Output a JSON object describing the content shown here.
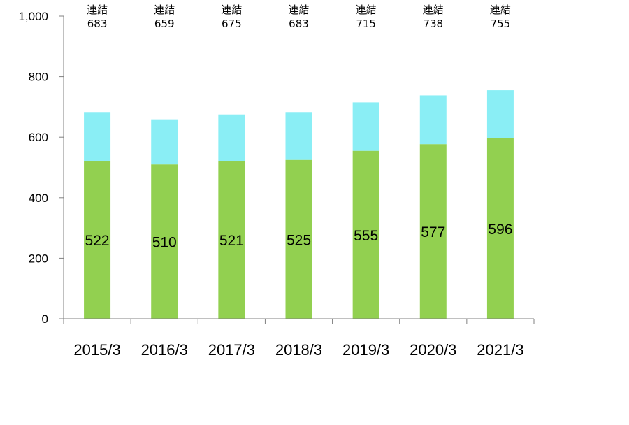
{
  "chart_data": {
    "type": "bar",
    "stacked": true,
    "categories": [
      "2015/3",
      "2016/3",
      "2017/3",
      "2018/3",
      "2019/3",
      "2020/3",
      "2021/3"
    ],
    "series": [
      {
        "color": "#92d050",
        "values": [
          522,
          510,
          521,
          525,
          555,
          577,
          596
        ]
      },
      {
        "color": "#8aeef5",
        "values": [
          161,
          149,
          154,
          158,
          160,
          161,
          159
        ]
      }
    ],
    "totals_prefix": "連結",
    "totals": [
      683,
      659,
      675,
      683,
      715,
      738,
      755
    ],
    "ylim": [
      0,
      1000
    ],
    "yticks": [
      0,
      200,
      400,
      600,
      800,
      1000
    ],
    "ytick_labels": [
      "0",
      "200",
      "400",
      "600",
      "800",
      "1,000"
    ],
    "grid": false,
    "title": "",
    "xlabel": "",
    "ylabel": ""
  }
}
